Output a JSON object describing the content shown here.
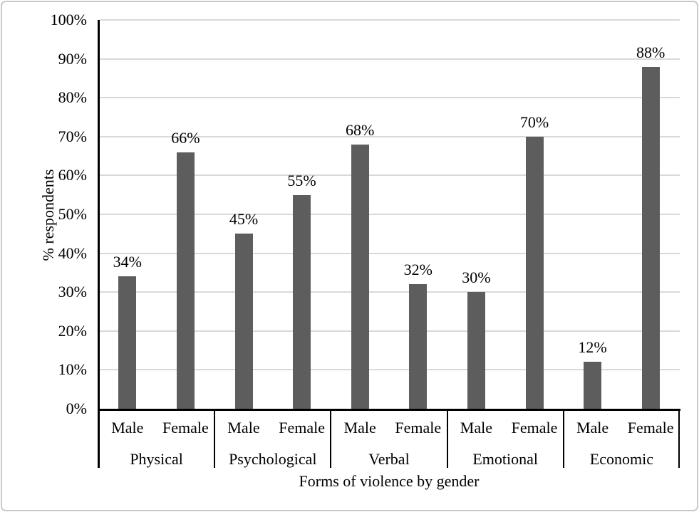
{
  "chart_data": {
    "type": "bar",
    "title": "",
    "xlabel": "Forms of violence by gender",
    "ylabel": "% respondents",
    "categories": [
      "Physical",
      "Psychological",
      "Verbal",
      "Emotional",
      "Economic"
    ],
    "subcategories": [
      "Male",
      "Female"
    ],
    "series": [
      {
        "name": "Physical",
        "values": [
          34,
          66
        ],
        "labels": [
          "34%",
          "66%"
        ]
      },
      {
        "name": "Psychological",
        "values": [
          45,
          55
        ],
        "labels": [
          "45%",
          "55%"
        ]
      },
      {
        "name": "Verbal",
        "values": [
          68,
          32
        ],
        "labels": [
          "68%",
          "32%"
        ]
      },
      {
        "name": "Emotional",
        "values": [
          30,
          70
        ],
        "labels": [
          "30%",
          "70%"
        ]
      },
      {
        "name": "Economic",
        "values": [
          12,
          88
        ],
        "labels": [
          "12%",
          "88%"
        ]
      }
    ],
    "y_ticks": [
      "0%",
      "10%",
      "20%",
      "30%",
      "40%",
      "50%",
      "60%",
      "70%",
      "80%",
      "90%",
      "100%"
    ],
    "ylim": [
      0,
      100
    ],
    "grid": true,
    "legend": "none",
    "bar_color": "#5d5d5d",
    "gridline_color": "#d9d9d9",
    "axis_color": "#000000",
    "frame_color": "#c9c9c9"
  }
}
